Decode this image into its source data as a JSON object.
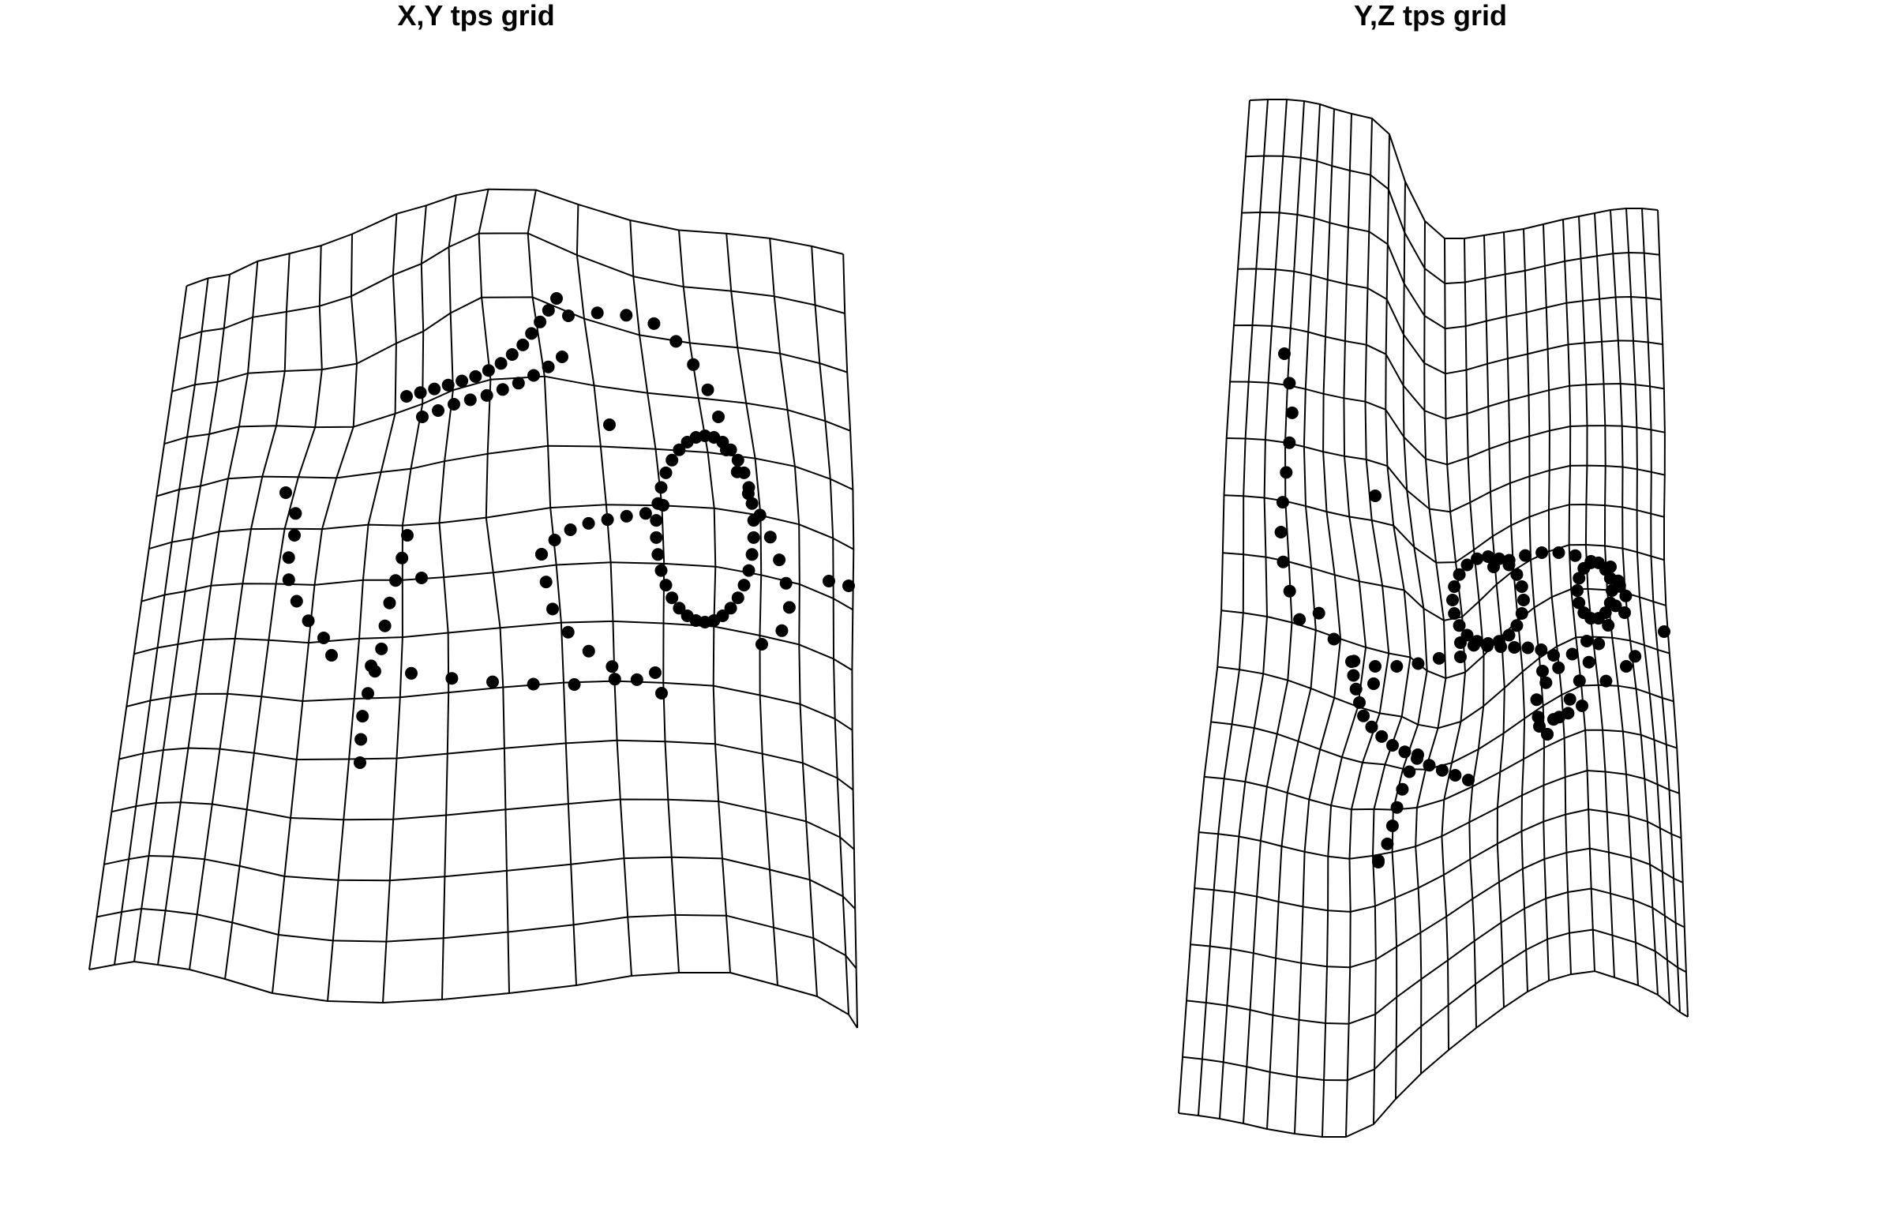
{
  "panels": [
    {
      "id": "xy",
      "title": "X,Y tps grid"
    },
    {
      "id": "yz",
      "title": "Y,Z tps grid"
    }
  ],
  "colors": {
    "ink": "#000000",
    "background": "#ffffff"
  }
}
